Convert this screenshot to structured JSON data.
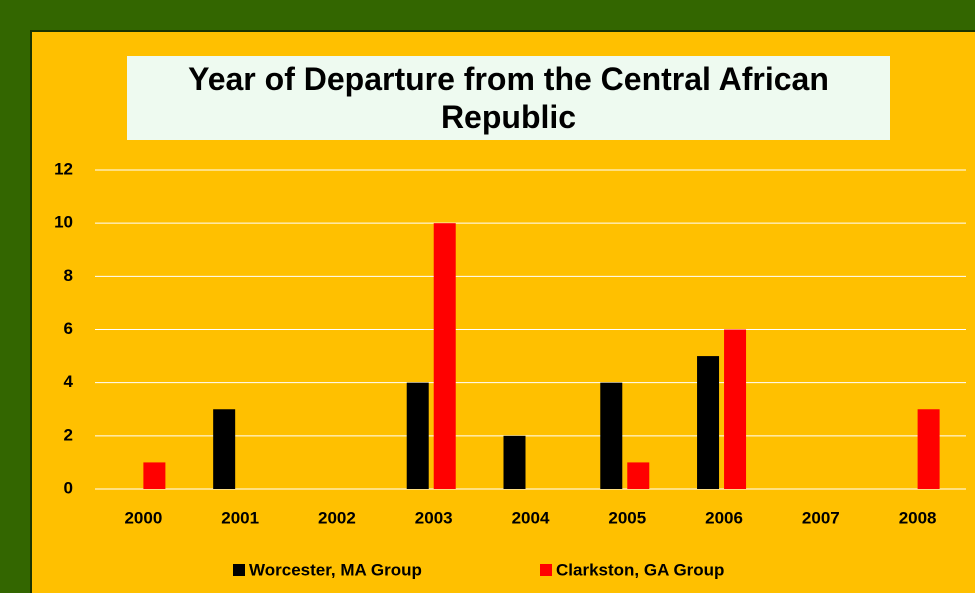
{
  "chart_data": {
    "type": "bar",
    "title": "Year of Departure from the Central African Republic",
    "categories": [
      "2000",
      "2001",
      "2002",
      "2003",
      "2004",
      "2005",
      "2006",
      "2007",
      "2008"
    ],
    "series": [
      {
        "name": "Worcester, MA Group",
        "color": "#000000",
        "values": [
          0,
          3,
          0,
          4,
          2,
          4,
          5,
          0,
          0
        ]
      },
      {
        "name": "Clarkston, GA Group",
        "color": "#ff0000",
        "values": [
          1,
          0,
          0,
          10,
          0,
          1,
          6,
          0,
          3
        ]
      }
    ],
    "ylim": [
      0,
      12
    ],
    "yticks": [
      0,
      2,
      4,
      6,
      8,
      10,
      12
    ],
    "grid": true,
    "legend": "bottom"
  }
}
